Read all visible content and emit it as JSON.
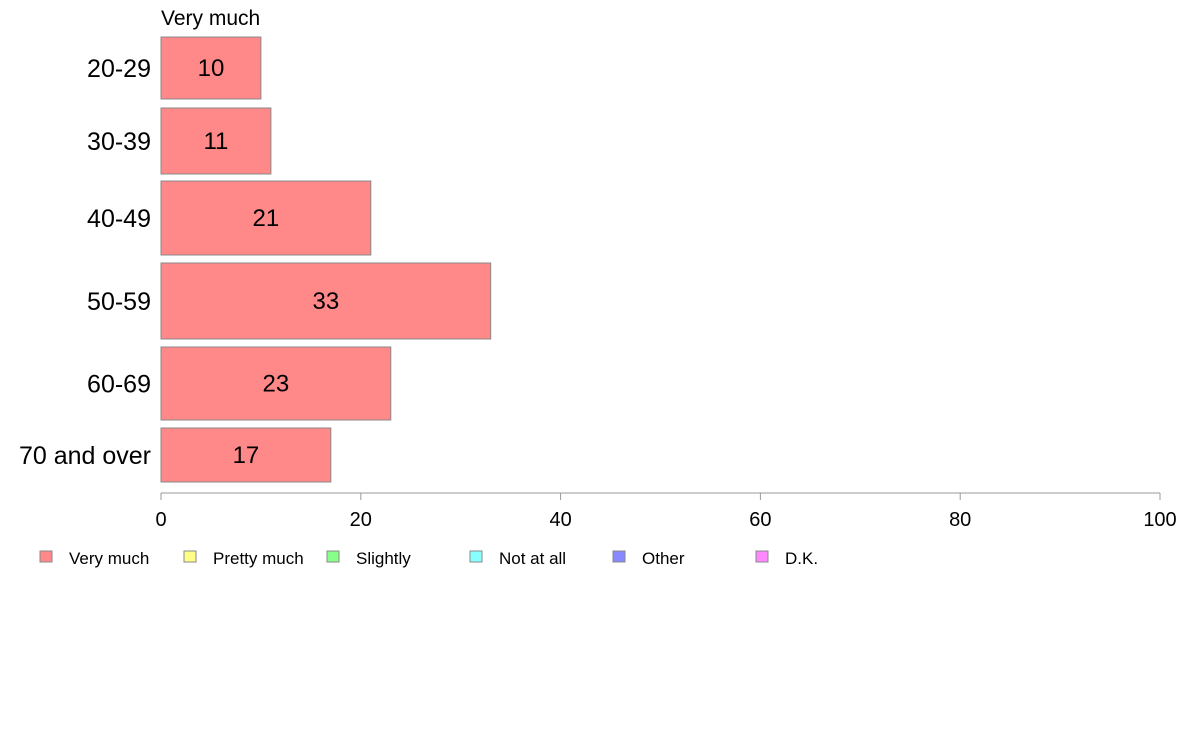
{
  "chart_data": {
    "type": "bar",
    "orientation": "horizontal",
    "title": "Very much",
    "categories": [
      "20-29",
      "30-39",
      "40-49",
      "50-59",
      "60-69",
      "70 and over"
    ],
    "series": [
      {
        "name": "Very much",
        "values": [
          10,
          11,
          21,
          33,
          23,
          17
        ],
        "color": "#ff8888"
      }
    ],
    "data_labels": [
      "10",
      "11",
      "21",
      "33",
      "23",
      "17"
    ],
    "xlim": [
      0,
      100
    ],
    "x_ticks": [
      0,
      20,
      40,
      60,
      80,
      100
    ],
    "x_tick_labels": [
      "0",
      "20",
      "40",
      "60",
      "80",
      "100"
    ],
    "grid": false,
    "legend_position": "bottom",
    "legend": [
      {
        "label": "Very much",
        "color": "#ff8888"
      },
      {
        "label": "Pretty much",
        "color": "#ffff88"
      },
      {
        "label": "Slightly",
        "color": "#88ff88"
      },
      {
        "label": "Not at all",
        "color": "#88ffff"
      },
      {
        "label": "Other",
        "color": "#8888ff"
      },
      {
        "label": "D.K.",
        "color": "#ff88ff"
      }
    ]
  },
  "colors": {
    "bar_stroke": "#888888",
    "axis": "#999999"
  }
}
